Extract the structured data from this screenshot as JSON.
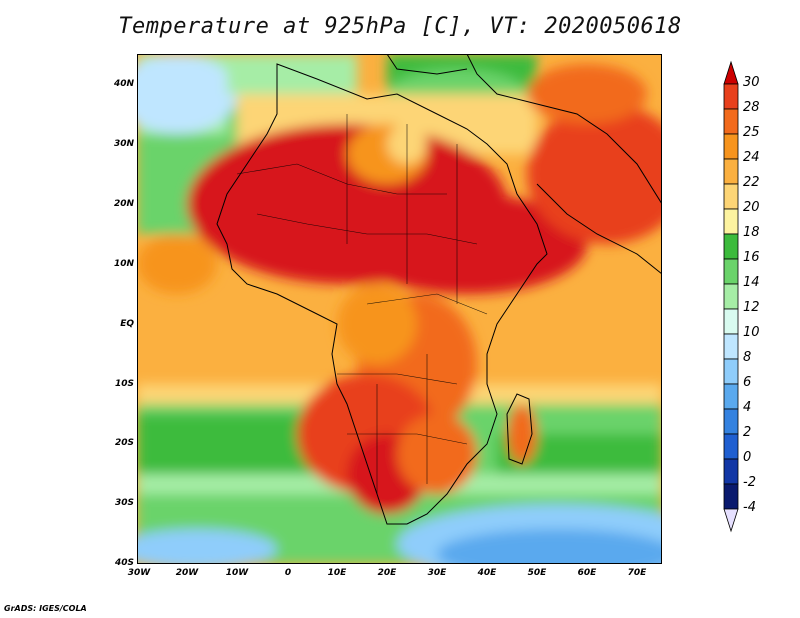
{
  "title": "Temperature at 925hPa [C], VT: 2020050618",
  "credit": "GrADS: IGES/COLA",
  "map": {
    "lat_labels": [
      "40N",
      "30N",
      "20N",
      "10N",
      "EQ",
      "10S",
      "20S",
      "30S",
      "40S"
    ],
    "lon_labels": [
      "30W",
      "20W",
      "10W",
      "0",
      "10E",
      "20E",
      "30E",
      "40E",
      "50E",
      "60E",
      "70E"
    ]
  },
  "colorbar": {
    "labels": [
      "30",
      "28",
      "25",
      "24",
      "22",
      "20",
      "18",
      "16",
      "14",
      "12",
      "10",
      "8",
      "6",
      "4",
      "2",
      "0",
      "-2",
      "-4"
    ],
    "colors": [
      "#d7191c",
      "#e8401c",
      "#f26a1c",
      "#f7941d",
      "#fbb040",
      "#fdd576",
      "#fdf3a0",
      "#3cbb3c",
      "#6ad36a",
      "#a6eda6",
      "#d9fbf0",
      "#bfe6ff",
      "#8fcdfb",
      "#5aa9ee",
      "#3482e0",
      "#1f5fd1",
      "#1237a6",
      "#0a1a6e"
    ],
    "top_arrow_color": "#cc0000",
    "bottom_arrow_color": "#e6e0ff"
  }
}
